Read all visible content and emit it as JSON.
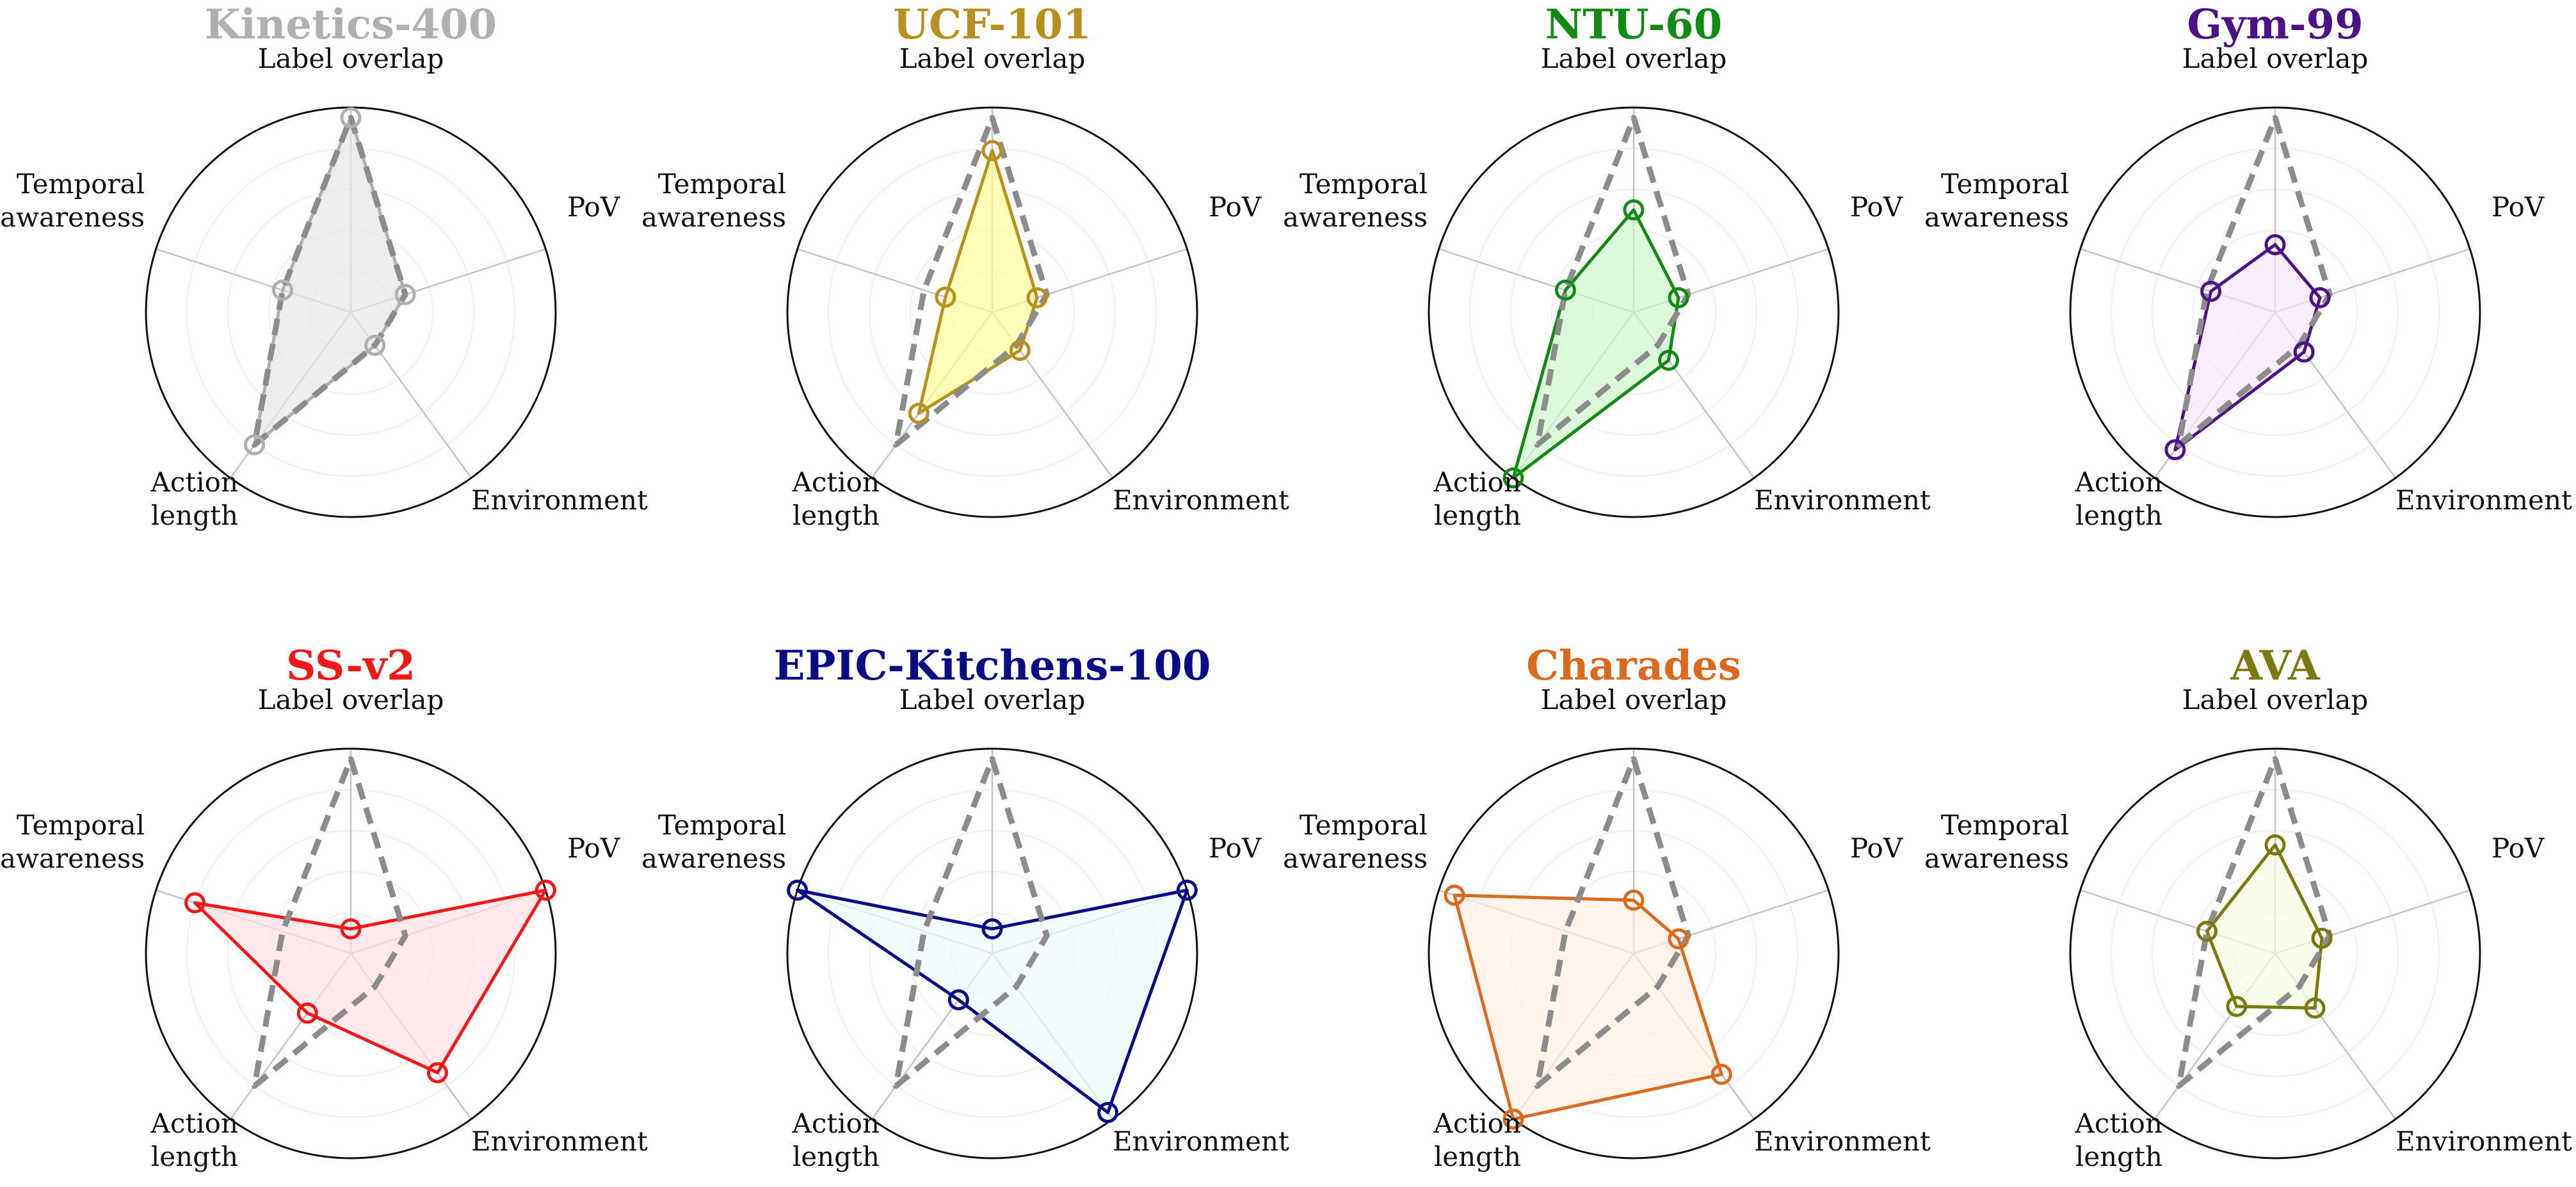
{
  "axes": [
    {
      "lines": [
        "Label overlap"
      ]
    },
    {
      "lines": [
        "PoV"
      ]
    },
    {
      "lines": [
        "Environment"
      ]
    },
    {
      "lines": [
        "Action",
        "length"
      ]
    },
    {
      "lines": [
        "Temporal",
        "awareness"
      ]
    }
  ],
  "chart_data": [
    {
      "type": "radar",
      "title": "Kinetics-400",
      "color": "#b0b0b0",
      "fill": "#e6e6e6",
      "values": [
        0.95,
        0.28,
        0.2,
        0.8,
        0.35
      ],
      "reference": [
        0.95,
        0.28,
        0.2,
        0.8,
        0.35
      ],
      "rmax": 1.0,
      "grid": true
    },
    {
      "type": "radar",
      "title": "UCF-101",
      "color": "#b8901f",
      "fill": "#ffff99",
      "values": [
        0.79,
        0.23,
        0.23,
        0.61,
        0.24
      ],
      "reference": [
        0.95,
        0.28,
        0.2,
        0.8,
        0.35
      ],
      "rmax": 1.0,
      "grid": true
    },
    {
      "type": "radar",
      "title": "NTU-60",
      "color": "#138a13",
      "fill": "#ccf5cc",
      "values": [
        0.5,
        0.23,
        0.29,
        1.0,
        0.35
      ],
      "reference": [
        0.95,
        0.28,
        0.2,
        0.8,
        0.35
      ],
      "rmax": 1.0,
      "grid": true
    },
    {
      "type": "radar",
      "title": "Gym-99",
      "color": "#4b1386",
      "fill": "#f6e6fa",
      "values": [
        0.33,
        0.23,
        0.24,
        0.83,
        0.33
      ],
      "reference": [
        0.95,
        0.28,
        0.2,
        0.8,
        0.35
      ],
      "rmax": 1.0,
      "grid": true
    },
    {
      "type": "radar",
      "title": "SS-v2",
      "color": "#f21818",
      "fill": "#ffe0e6",
      "values": [
        0.12,
        1.0,
        0.72,
        0.36,
        0.8
      ],
      "reference": [
        0.95,
        0.28,
        0.2,
        0.8,
        0.35
      ],
      "rmax": 1.0,
      "grid": true
    },
    {
      "type": "radar",
      "title": "EPIC-Kitchens-100",
      "color": "#0b0b85",
      "fill": "#effaff",
      "values": [
        0.12,
        1.0,
        0.96,
        0.28,
        1.0
      ],
      "reference": [
        0.95,
        0.28,
        0.2,
        0.8,
        0.35
      ],
      "rmax": 1.0,
      "grid": true
    },
    {
      "type": "radar",
      "title": "Charades",
      "color": "#d96a1f",
      "fill": "#fff0e0",
      "values": [
        0.26,
        0.23,
        0.73,
        1.0,
        0.92
      ],
      "reference": [
        0.95,
        0.28,
        0.2,
        0.8,
        0.35
      ],
      "rmax": 1.0,
      "grid": true
    },
    {
      "type": "radar",
      "title": "AVA",
      "color": "#7a7a10",
      "fill": "#f6fce0",
      "values": [
        0.53,
        0.24,
        0.33,
        0.32,
        0.35
      ],
      "reference": [
        0.95,
        0.28,
        0.2,
        0.8,
        0.35
      ],
      "rmax": 1.0,
      "grid": true
    }
  ]
}
